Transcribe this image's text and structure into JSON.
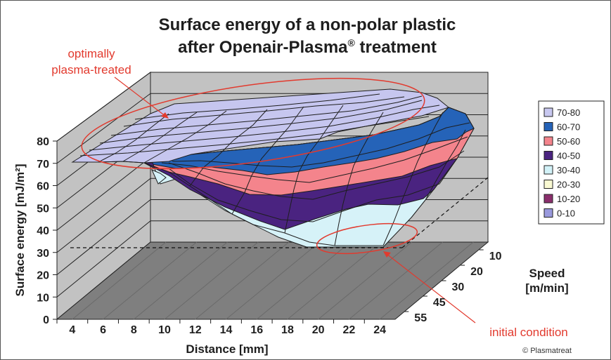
{
  "chart_data": {
    "type": "surface",
    "title": "Surface energy of a non-polar plastic",
    "subtitle_prefix": "after Openair-Plasma",
    "subtitle_mark": "®",
    "subtitle_suffix": " treatment",
    "xlabel": "Distance [mm]",
    "ylabel": "Surface energy [mJ/m²]",
    "zlabel_line1": "Speed",
    "zlabel_line2": "[m/min]",
    "x_ticks": [
      "4",
      "6",
      "8",
      "10",
      "12",
      "14",
      "16",
      "18",
      "20",
      "22",
      "24"
    ],
    "y_ticks": [
      "0",
      "10",
      "20",
      "30",
      "40",
      "50",
      "60",
      "70",
      "80"
    ],
    "z_ticks": [
      "10",
      "20",
      "30",
      "45",
      "55"
    ],
    "ylim": [
      0,
      80
    ],
    "grid": true,
    "legend_position": "right",
    "legend": [
      {
        "label": "70-80",
        "color": "#c8c8f0"
      },
      {
        "label": "60-70",
        "color": "#2563b8"
      },
      {
        "label": "50-60",
        "color": "#f4848c"
      },
      {
        "label": "40-50",
        "color": "#4a2380"
      },
      {
        "label": "30-40",
        "color": "#d2f2f8"
      },
      {
        "label": "20-30",
        "color": "#fafad2"
      },
      {
        "label": "10-20",
        "color": "#8a2e6c"
      },
      {
        "label": "0-10",
        "color": "#9999dd"
      }
    ],
    "annotations": {
      "optimal_line1": "optimally",
      "optimal_line2": "plasma-treated",
      "initial": "initial condition",
      "copyright": "© Plasmatreat"
    },
    "front_profile": [
      {
        "x": 4,
        "y": 70
      },
      {
        "x": 6,
        "y": 70
      },
      {
        "x": 8,
        "y": 70
      },
      {
        "x": 10,
        "y": 70
      },
      {
        "x": 12,
        "y": 57
      },
      {
        "x": 14,
        "y": 47
      },
      {
        "x": 16,
        "y": 40
      },
      {
        "x": 18,
        "y": 33
      },
      {
        "x": 20,
        "y": 29
      },
      {
        "x": 22,
        "y": 29
      },
      {
        "x": 24,
        "y": 30
      }
    ]
  }
}
